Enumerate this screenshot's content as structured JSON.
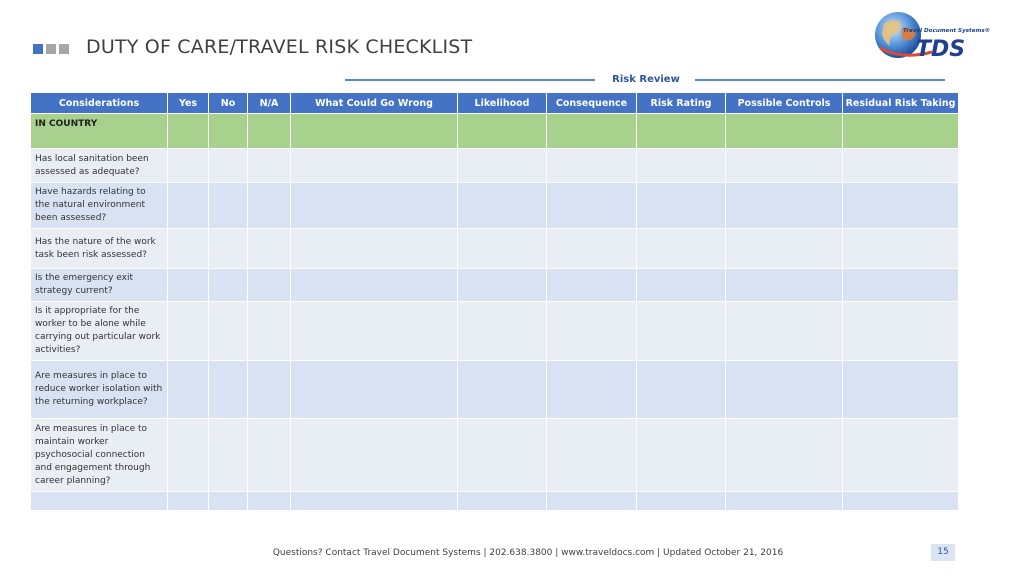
{
  "header": {
    "title": "DUTY OF CARE/TRAVEL RISK CHECKLIST",
    "logo_tagline": "Travel Document Systems®",
    "logo_text": "TDS"
  },
  "review": {
    "label": "Risk Review"
  },
  "table": {
    "columns": [
      "Considerations",
      "Yes",
      "No",
      "N/A",
      "What Could Go Wrong",
      "Likelihood",
      "Consequence",
      "Risk Rating",
      "Possible Controls",
      "Residual Risk Taking"
    ],
    "section_label": "IN COUNTRY",
    "rows": [
      "Has local sanitation been assessed as adequate?",
      "Have hazards relating to the natural environment been assessed?",
      "Has the nature of the work task been risk assessed?",
      "Is the emergency exit strategy current?",
      "Is it appropriate for the worker to be alone while carrying out particular work activities?",
      "Are measures in place to reduce worker isolation with the returning workplace?",
      "Are measures in place to maintain worker psychosocial connection and engagement through career planning?",
      ""
    ]
  },
  "footer": {
    "text": "Questions? Contact Travel Document Systems | 202.638.3800 | www.traveldocs.com | Updated October 21, 2016",
    "page_number": "15"
  },
  "colors": {
    "header_fill": "#4472c4",
    "section_fill": "#a9d18e",
    "row_light": "#e9edf4",
    "row_dark": "#d9e2f3",
    "review_text": "#2f5597"
  }
}
